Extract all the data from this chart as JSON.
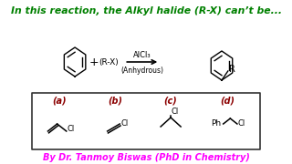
{
  "title": "In this reaction, the Alkyl halide (R-X) can’t be...",
  "title_color": "#008000",
  "title_fontsize": 7.8,
  "alcl3": "AlCl₃",
  "anhydrous": "(Anhydrous)",
  "rx": "(R-X)",
  "options": [
    "(a)",
    "(b)",
    "(c)",
    "(d)"
  ],
  "option_color": "#8B0000",
  "option_fontsize": 7,
  "author": "By Dr. Tanmoy Biswas (PhD in Chemistry)",
  "author_color": "#FF00FF",
  "author_fontsize": 7,
  "bg_color": "#FFFFFF",
  "box_color": "#333333"
}
